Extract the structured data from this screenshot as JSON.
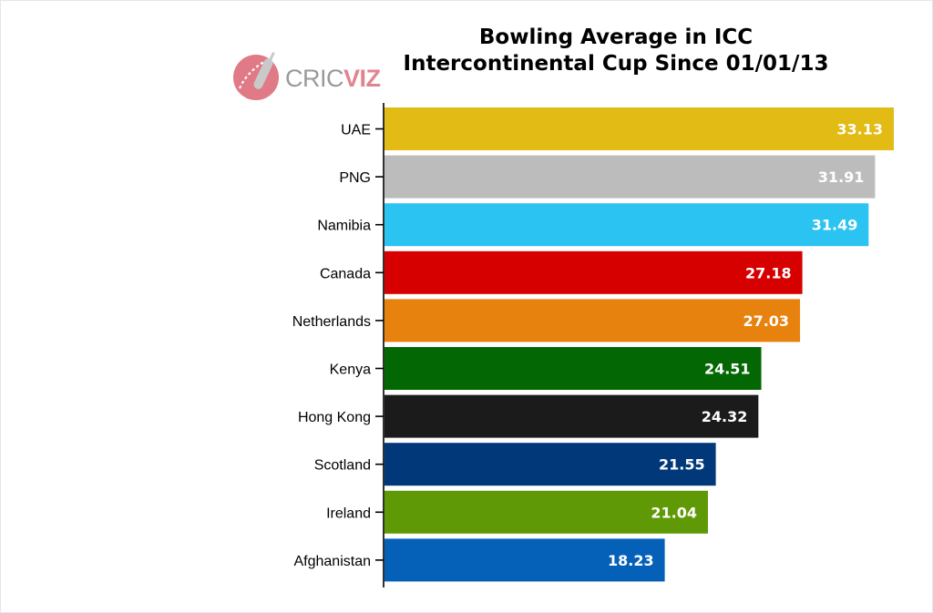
{
  "title": {
    "line1": "Bowling Average in ICC",
    "line2": "Intercontinental Cup Since 01/01/13"
  },
  "logo": {
    "text_a": "CRIC",
    "text_b": "VIZ",
    "icon": "cricket-bat-ball-icon"
  },
  "chart_data": {
    "type": "bar",
    "orientation": "horizontal",
    "title": "Bowling Average in ICC Intercontinental Cup Since 01/01/13",
    "xlabel": "",
    "ylabel": "",
    "grid": false,
    "legend": "none",
    "categories": [
      "UAE",
      "PNG",
      "Namibia",
      "Canada",
      "Netherlands",
      "Kenya",
      "Hong Kong",
      "Scotland",
      "Ireland",
      "Afghanistan"
    ],
    "values": [
      33.13,
      31.91,
      31.49,
      27.18,
      27.03,
      24.51,
      24.32,
      21.55,
      21.04,
      18.23
    ],
    "value_labels": [
      "33.13",
      "31.91",
      "31.49",
      "27.18",
      "27.03",
      "24.51",
      "24.32",
      "21.55",
      "21.04",
      "18.23"
    ],
    "colors": [
      "#e2bb14",
      "#bcbcbc",
      "#2bc3f2",
      "#d70000",
      "#e8820e",
      "#036803",
      "#1b1b1b",
      "#01387a",
      "#5f9905",
      "#0560b8"
    ],
    "xlim": [
      0,
      33.13
    ]
  }
}
